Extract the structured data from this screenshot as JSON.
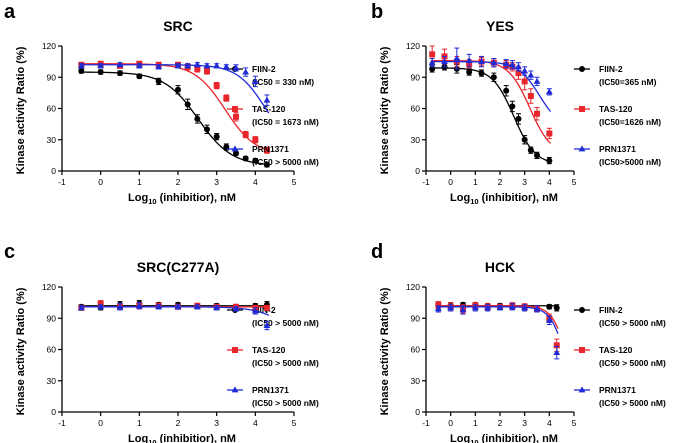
{
  "chart_data": [
    {
      "type": "line",
      "panel_label": "a",
      "title": "SRC",
      "xlabel_main": "Log",
      "xlabel_sub": "10",
      "xlabel_rest": " (inhibitior), nM",
      "ylabel": "Kinase activity Ratio (%)",
      "xlim": [
        -1,
        5
      ],
      "ylim": [
        0,
        120
      ],
      "xticks": [
        -1,
        0,
        1,
        2,
        3,
        4,
        5
      ],
      "xtick_labels": [
        "-1",
        "0",
        "1",
        "2",
        "3",
        "4",
        "5"
      ],
      "yticks": [
        0,
        30,
        60,
        90,
        120
      ],
      "ytick_labels": [
        "0",
        "30",
        "60",
        "90",
        "120"
      ],
      "x": [
        -0.5,
        0,
        0.5,
        1,
        1.5,
        2,
        2.25,
        2.5,
        2.75,
        3,
        3.25,
        3.5,
        3.75,
        4,
        4.3
      ],
      "series": [
        {
          "name": "FIIN-2",
          "ic50_label": "(IC50 = 330 nM)",
          "color": "#000000",
          "marker": "circle",
          "values": [
            96,
            95,
            94,
            91,
            86,
            78,
            64,
            50,
            40,
            33,
            23,
            17,
            12,
            10,
            6
          ],
          "errors": [
            2,
            2,
            2,
            2,
            3,
            4,
            5,
            4,
            4,
            3,
            3,
            2,
            2,
            2,
            2
          ],
          "fit": {
            "top": 95,
            "bottom": 5,
            "logIC50": 2.52,
            "hill": 1.0
          }
        },
        {
          "name": "TAS-120",
          "ic50_label": "(IC50 = 1673 nM)",
          "color": "#e8262b",
          "marker": "square",
          "values": [
            102,
            103,
            101,
            103,
            102,
            102,
            100,
            98,
            96,
            82,
            70,
            52,
            35,
            30,
            20
          ],
          "errors": [
            2,
            2,
            2,
            2,
            2,
            2,
            3,
            3,
            3,
            3,
            3,
            4,
            3,
            3,
            3
          ],
          "fit": {
            "top": 103,
            "bottom": 15,
            "logIC50": 3.22,
            "hill": 1.1
          }
        },
        {
          "name": "PRN1371",
          "ic50_label": "(IC50 > 5000 nM)",
          "color": "#1f2bd6",
          "marker": "triangle",
          "values": [
            101,
            101,
            102,
            101,
            100,
            101,
            101,
            102,
            101,
            101,
            100,
            99,
            95,
            86,
            68
          ],
          "errors": [
            2,
            2,
            2,
            2,
            2,
            2,
            2,
            2,
            2,
            2,
            2,
            3,
            4,
            5,
            5
          ],
          "fit": {
            "top": 102,
            "bottom": 20,
            "logIC50": 4.25,
            "hill": 1.2
          }
        }
      ]
    },
    {
      "type": "line",
      "panel_label": "b",
      "title": "YES",
      "xlabel_main": "Log",
      "xlabel_sub": "10",
      "xlabel_rest": " (inhibitior), nM",
      "ylabel": "Kinase activity Ratio (%)",
      "xlim": [
        -1,
        5
      ],
      "ylim": [
        0,
        120
      ],
      "xticks": [
        -1,
        0,
        1,
        2,
        3,
        4,
        5
      ],
      "xtick_labels": [
        "-1",
        "0",
        "1",
        "2",
        "3",
        "4",
        "5"
      ],
      "yticks": [
        0,
        30,
        60,
        90,
        120
      ],
      "ytick_labels": [
        "0",
        "30",
        "60",
        "90",
        "120"
      ],
      "x": [
        -0.75,
        -0.25,
        0.25,
        0.75,
        1.25,
        1.75,
        2.25,
        2.5,
        2.75,
        3,
        3.25,
        3.5,
        4
      ],
      "series": [
        {
          "name": "FIIN-2",
          "ic50_label": "(IC50=365 nM)",
          "color": "#000000",
          "marker": "circle",
          "values": [
            98,
            100,
            98,
            95,
            94,
            90,
            77,
            62,
            50,
            30,
            20,
            15,
            10
          ],
          "errors": [
            3,
            3,
            4,
            3,
            3,
            4,
            5,
            5,
            5,
            4,
            3,
            3,
            3
          ],
          "fit": {
            "top": 99,
            "bottom": 6,
            "logIC50": 2.56,
            "hill": 1.0
          }
        },
        {
          "name": "TAS-120",
          "ic50_label": "(IC50=1626 nM)",
          "color": "#e8262b",
          "marker": "square",
          "values": [
            112,
            110,
            105,
            103,
            105,
            104,
            102,
            100,
            94,
            86,
            72,
            55,
            36
          ],
          "errors": [
            8,
            7,
            5,
            4,
            4,
            4,
            4,
            4,
            6,
            8,
            7,
            6,
            5
          ],
          "fit": {
            "top": 106,
            "bottom": 15,
            "logIC50": 3.21,
            "hill": 1.0
          }
        },
        {
          "name": "PRN1371",
          "ic50_label": "(IC50>5000 nM)",
          "color": "#1f2bd6",
          "marker": "triangle",
          "values": [
            104,
            105,
            108,
            106,
            105,
            104,
            103,
            102,
            100,
            96,
            92,
            86,
            76
          ],
          "errors": [
            4,
            5,
            10,
            6,
            5,
            4,
            4,
            4,
            4,
            4,
            4,
            4,
            3
          ],
          "fit": {
            "top": 105,
            "bottom": 40,
            "logIC50": 3.6,
            "hill": 1.0
          }
        }
      ]
    },
    {
      "type": "line",
      "panel_label": "c",
      "title": "SRC(C277A)",
      "xlabel_main": "Log",
      "xlabel_sub": "10",
      "xlabel_rest": " (inhibitior), nM",
      "ylabel": "Kinase activity Ratio (%)",
      "xlim": [
        -1,
        5
      ],
      "ylim": [
        0,
        120
      ],
      "xticks": [
        -1,
        0,
        1,
        2,
        3,
        4,
        5
      ],
      "xtick_labels": [
        "-1",
        "0",
        "1",
        "2",
        "3",
        "4",
        "5"
      ],
      "yticks": [
        0,
        30,
        60,
        90,
        120
      ],
      "ytick_labels": [
        "0",
        "30",
        "60",
        "90",
        "120"
      ],
      "x": [
        -0.5,
        0,
        0.5,
        1,
        1.5,
        2,
        2.5,
        3,
        3.5,
        4,
        4.3
      ],
      "series": [
        {
          "name": "FIIN-2",
          "ic50_label": "(IC50 > 5000 nM)",
          "color": "#000000",
          "marker": "circle",
          "values": [
            101,
            102,
            103,
            104,
            103,
            103,
            102,
            102,
            101,
            102,
            103
          ],
          "errors": [
            2,
            4,
            3,
            3,
            2,
            2,
            2,
            2,
            2,
            2,
            3
          ],
          "fit": {
            "top": 102,
            "bottom": 102,
            "logIC50": 6,
            "hill": 1.0
          }
        },
        {
          "name": "TAS-120",
          "ic50_label": "(IC50 > 5000 nM)",
          "color": "#e8262b",
          "marker": "square",
          "values": [
            100,
            104,
            101,
            102,
            102,
            101,
            102,
            101,
            101,
            100,
            100
          ],
          "errors": [
            2,
            3,
            3,
            3,
            2,
            2,
            2,
            2,
            2,
            2,
            2
          ],
          "fit": {
            "top": 101,
            "bottom": 101,
            "logIC50": 6,
            "hill": 1.0
          }
        },
        {
          "name": "PRN1371",
          "ic50_label": "(IC50 > 5000 nM)",
          "color": "#1f2bd6",
          "marker": "triangle",
          "values": [
            100,
            101,
            101,
            102,
            101,
            101,
            101,
            100,
            99,
            97,
            83
          ],
          "errors": [
            2,
            2,
            3,
            3,
            2,
            2,
            2,
            2,
            2,
            3,
            4
          ],
          "fit": {
            "top": 101,
            "bottom": 20,
            "logIC50": 5.3,
            "hill": 1.0
          }
        }
      ]
    },
    {
      "type": "line",
      "panel_label": "d",
      "title": "HCK",
      "xlabel_main": "Log",
      "xlabel_sub": "10",
      "xlabel_rest": " (inhibitior), nM",
      "ylabel": "Kinase activity Ratio (%)",
      "xlim": [
        -1,
        5
      ],
      "ylim": [
        0,
        120
      ],
      "xticks": [
        -1,
        0,
        1,
        2,
        3,
        4,
        5
      ],
      "xtick_labels": [
        "-1",
        "0",
        "1",
        "2",
        "3",
        "4",
        "5"
      ],
      "yticks": [
        0,
        30,
        60,
        90,
        120
      ],
      "ytick_labels": [
        "0",
        "30",
        "60",
        "90",
        "120"
      ],
      "x": [
        -0.5,
        0,
        0.5,
        1,
        1.5,
        2,
        2.5,
        3,
        3.5,
        4,
        4.3
      ],
      "series": [
        {
          "name": "FIIN-2",
          "ic50_label": "(IC50 > 5000 nM)",
          "color": "#000000",
          "marker": "circle",
          "values": [
            102,
            102,
            103,
            103,
            102,
            102,
            101,
            101,
            100,
            101,
            100
          ],
          "errors": [
            3,
            3,
            2,
            2,
            2,
            2,
            2,
            2,
            2,
            2,
            3
          ],
          "fit": {
            "top": 102,
            "bottom": 102,
            "logIC50": 6,
            "hill": 1.0
          }
        },
        {
          "name": "TAS-120",
          "ic50_label": "(IC50 > 5000 nM)",
          "color": "#e8262b",
          "marker": "square",
          "values": [
            103,
            101,
            99,
            102,
            101,
            101,
            102,
            101,
            99,
            90,
            64
          ],
          "errors": [
            3,
            4,
            4,
            3,
            3,
            2,
            3,
            3,
            3,
            4,
            6
          ],
          "fit": {
            "top": 102,
            "bottom": 0,
            "logIC50": 4.75,
            "hill": 1.4
          }
        },
        {
          "name": "PRN1371",
          "ic50_label": "(IC50 > 5000 nM)",
          "color": "#1f2bd6",
          "marker": "triangle",
          "values": [
            99,
            100,
            98,
            100,
            100,
            100,
            101,
            100,
            99,
            88,
            57
          ],
          "errors": [
            3,
            3,
            4,
            3,
            3,
            2,
            3,
            3,
            3,
            4,
            6
          ],
          "fit": {
            "top": 101,
            "bottom": 0,
            "logIC50": 4.68,
            "hill": 1.4
          }
        }
      ]
    }
  ]
}
